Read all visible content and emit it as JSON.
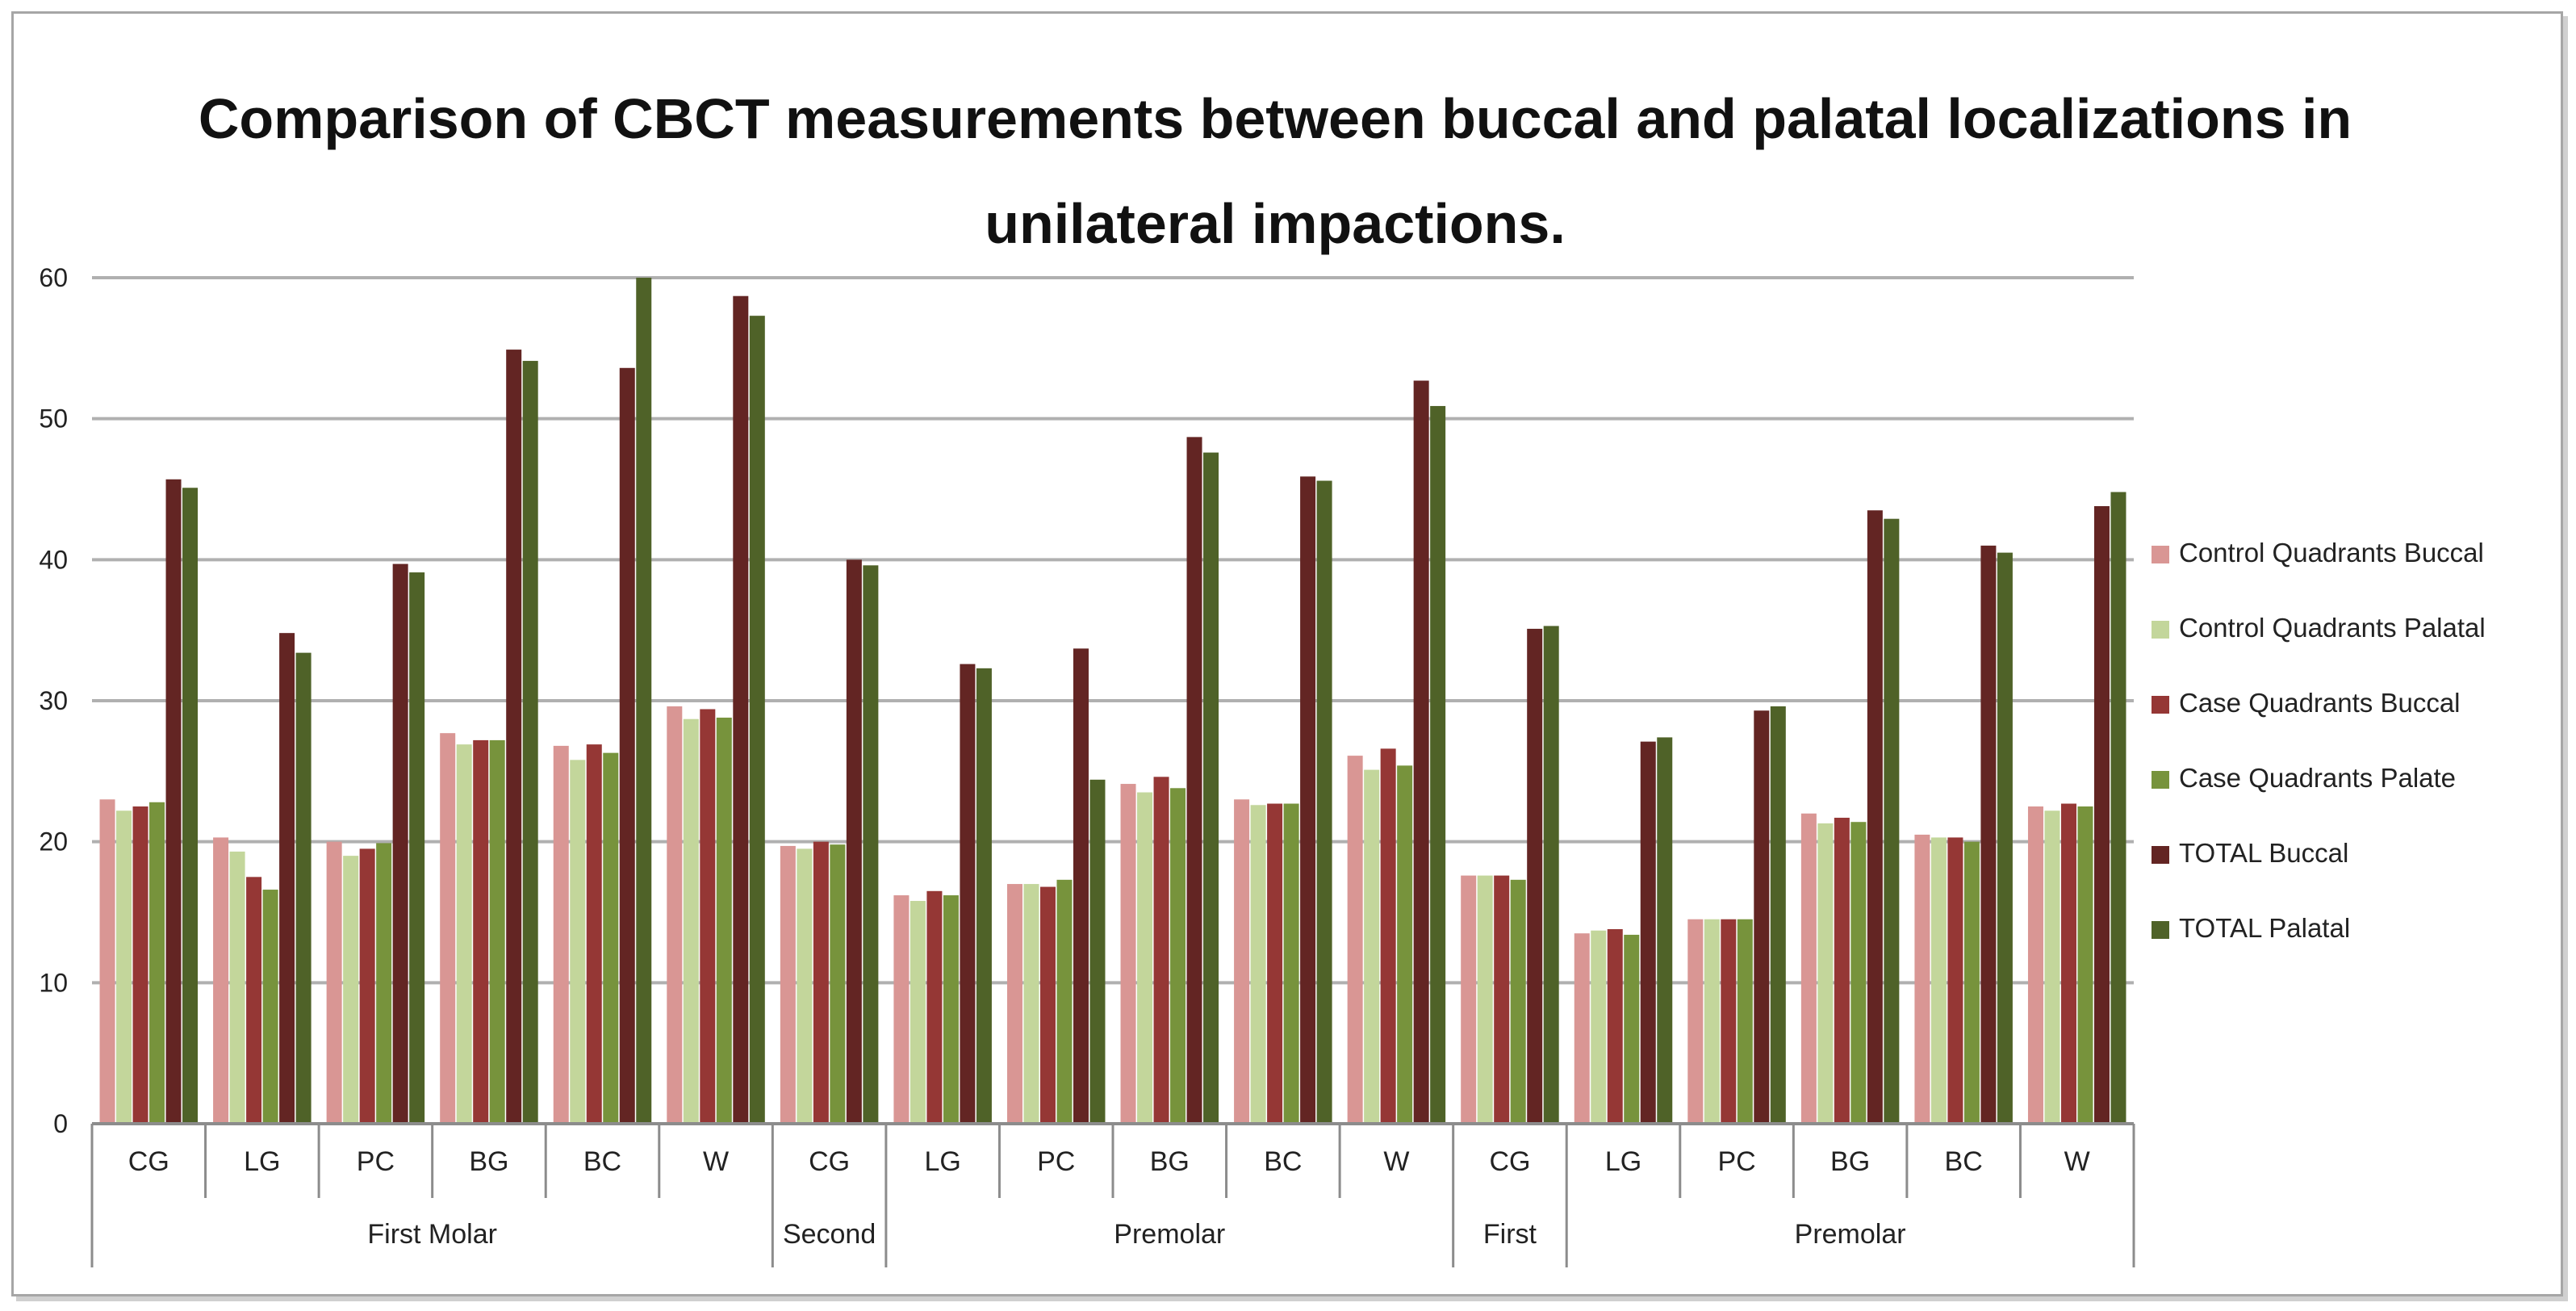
{
  "chart_data": {
    "type": "bar",
    "title": "Comparison of CBCT measurements between buccal and palatal localizations in unilateral impactions.",
    "xlabel": "",
    "ylabel": "",
    "ylim": [
      0,
      60
    ],
    "yticks": [
      0,
      10,
      20,
      30,
      40,
      50,
      60
    ],
    "grid": true,
    "legend_position": "right",
    "categories": [
      "CG",
      "LG",
      "PC",
      "BG",
      "BC",
      "W",
      "CG",
      "LG",
      "PC",
      "BG",
      "BC",
      "W",
      "CG",
      "LG",
      "PC",
      "BG",
      "BC",
      "W"
    ],
    "groups": [
      {
        "label": "First Molar",
        "span": 6
      },
      {
        "label": "Second",
        "span": 1
      },
      {
        "label": "Premolar",
        "span": 5
      },
      {
        "label": "First",
        "span": 1
      },
      {
        "label": "Premolar",
        "span": 5
      }
    ],
    "series": [
      {
        "name": "Control Quadrants Buccal",
        "color": "#d99694",
        "values": [
          23.0,
          20.3,
          20.0,
          27.7,
          26.8,
          29.6,
          19.7,
          16.2,
          17.0,
          24.1,
          23.0,
          26.1,
          17.6,
          13.5,
          14.5,
          22.0,
          20.5,
          22.5
        ]
      },
      {
        "name": "Control Quadrants Palatal",
        "color": "#c3d69b",
        "values": [
          22.2,
          19.3,
          19.0,
          26.9,
          25.8,
          28.7,
          19.5,
          15.8,
          17.0,
          23.5,
          22.6,
          25.1,
          17.6,
          13.7,
          14.5,
          21.3,
          20.3,
          22.2
        ]
      },
      {
        "name": "Case Quadrants Buccal",
        "color": "#953735",
        "values": [
          22.5,
          17.5,
          19.5,
          27.2,
          26.9,
          29.4,
          20.0,
          16.5,
          16.8,
          24.6,
          22.7,
          26.6,
          17.6,
          13.8,
          14.5,
          21.7,
          20.3,
          22.7
        ]
      },
      {
        "name": "Case Quadrants Palate",
        "color": "#77933c",
        "values": [
          22.8,
          16.6,
          19.9,
          27.2,
          26.3,
          28.8,
          19.8,
          16.2,
          17.3,
          23.8,
          22.7,
          25.4,
          17.3,
          13.4,
          14.5,
          21.4,
          20.0,
          22.5
        ]
      },
      {
        "name": "TOTAL Buccal",
        "color": "#632523",
        "values": [
          45.7,
          34.8,
          39.7,
          54.9,
          53.6,
          58.7,
          40.0,
          32.6,
          33.7,
          48.7,
          45.9,
          52.7,
          35.1,
          27.1,
          29.3,
          43.5,
          41.0,
          43.8
        ]
      },
      {
        "name": "TOTAL Palatal",
        "color": "#4f6228",
        "values": [
          45.1,
          33.4,
          39.1,
          54.1,
          60.0,
          57.3,
          39.6,
          32.3,
          24.4,
          47.6,
          45.6,
          50.9,
          35.3,
          27.4,
          29.6,
          42.9,
          40.5,
          44.8
        ]
      }
    ]
  }
}
